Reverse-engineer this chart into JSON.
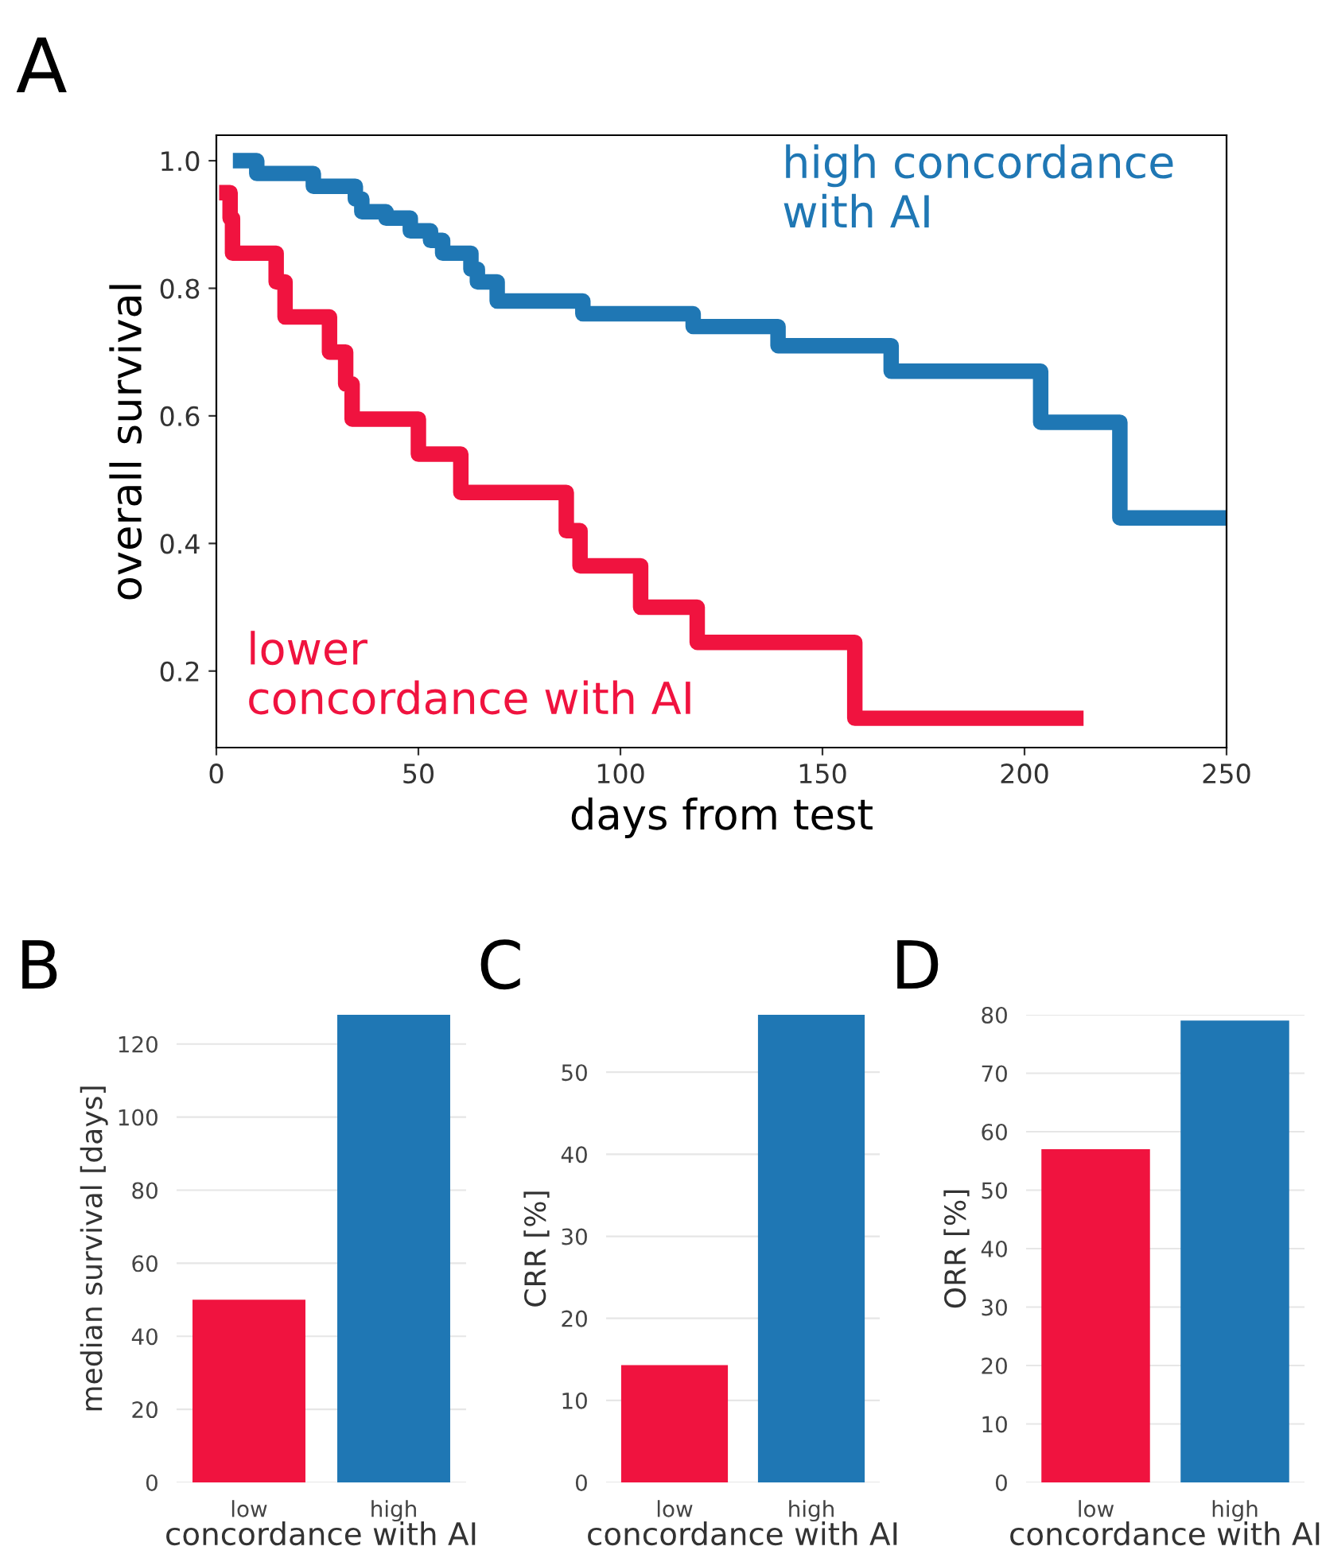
{
  "chart_data": [
    {
      "type": "step",
      "title": "A",
      "xlabel": "days from test",
      "ylabel": "overall survival",
      "xlim": [
        0,
        250
      ],
      "xticks": [
        0,
        50,
        100,
        150,
        200,
        250
      ],
      "ylim": [
        0.08,
        1.04
      ],
      "yticks": [
        {
          "value": 0.2,
          "label": "0.2"
        },
        {
          "value": 0.4,
          "label": "0.4"
        },
        {
          "value": 0.6,
          "label": "0.6"
        },
        {
          "value": 0.8,
          "label": "0.8"
        },
        {
          "value": 1.0,
          "label": "1.0"
        }
      ],
      "grid": false,
      "legend": false,
      "series": [
        {
          "name": "high concordance\nwith AI",
          "color": "#1f77b4",
          "x": [
            6,
            10,
            24,
            34.4,
            36,
            42,
            48,
            53,
            56,
            63,
            64.6,
            69.5,
            90.7,
            118,
            139,
            167,
            204,
            223.6,
            250
          ],
          "values": [
            1.0,
            0.98,
            0.96,
            0.94,
            0.92,
            0.91,
            0.89,
            0.875,
            0.855,
            0.83,
            0.81,
            0.78,
            0.76,
            0.74,
            0.71,
            0.67,
            0.59,
            0.44,
            0.44
          ]
        },
        {
          "name": "lower\nconcordance with AI",
          "color": "#f0133f",
          "x": [
            2.6,
            3.4,
            4,
            14.8,
            17,
            28,
            32,
            33.6,
            50,
            60.5,
            86.6,
            90,
            105,
            119,
            158,
            212.7
          ],
          "values": [
            0.95,
            0.91,
            0.855,
            0.81,
            0.755,
            0.7,
            0.65,
            0.595,
            0.54,
            0.48,
            0.42,
            0.365,
            0.3,
            0.245,
            0.126,
            0.126
          ]
        }
      ]
    },
    {
      "type": "bar",
      "title": "B",
      "xlabel": "concordance with AI",
      "ylabel": "median survival [days]",
      "categories": [
        "low",
        "high"
      ],
      "values": [
        50,
        128
      ],
      "colors": [
        "#f0133f",
        "#1f77b4"
      ],
      "ylim": [
        0,
        128
      ],
      "yticks": [
        0,
        20,
        40,
        60,
        80,
        100,
        120
      ],
      "grid": "y"
    },
    {
      "type": "bar",
      "title": "C",
      "xlabel": "concordance with AI",
      "ylabel": "CRR [%]",
      "categories": [
        "low",
        "high"
      ],
      "values": [
        14.3,
        57
      ],
      "colors": [
        "#f0133f",
        "#1f77b4"
      ],
      "ylim": [
        0,
        57
      ],
      "yticks": [
        0,
        10,
        20,
        30,
        40,
        50
      ],
      "grid": "y"
    },
    {
      "type": "bar",
      "title": "D",
      "xlabel": "concordance with AI",
      "ylabel": "ORR [%]",
      "categories": [
        "low",
        "high"
      ],
      "values": [
        57,
        79
      ],
      "colors": [
        "#f0133f",
        "#1f77b4"
      ],
      "ylim": [
        0,
        80
      ],
      "yticks": [
        0,
        10,
        20,
        30,
        40,
        50,
        60,
        70,
        80
      ],
      "grid": "y"
    }
  ]
}
